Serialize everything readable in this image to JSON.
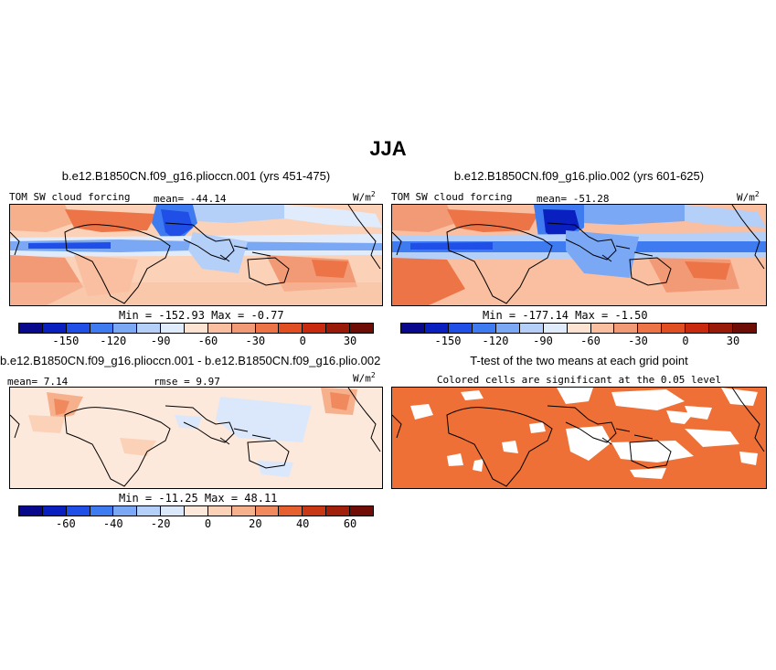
{
  "figure_title": "JJA",
  "colors": {
    "panel_scale": [
      "#08088c",
      "#0a1fc0",
      "#1f4fe6",
      "#3e7bf0",
      "#7aa8f5",
      "#b4cff8",
      "#e0ecfb",
      "#fde3d2",
      "#f9bfa0",
      "#f29a76",
      "#ec7446",
      "#e14e22",
      "#c92a0f",
      "#9a1a0a",
      "#6e0d06"
    ],
    "diff_scale": [
      "#08088c",
      "#0a1fc0",
      "#1f4fe6",
      "#3e7bf0",
      "#7aa8f5",
      "#b4cff8",
      "#dbe7fa",
      "#fde9dc",
      "#fbd2b8",
      "#f6b08c",
      "#f08a5e",
      "#e6602f",
      "#c93814",
      "#a0200b",
      "#700d06"
    ],
    "significant": "#ee7036",
    "land_coast": "#000000"
  },
  "chart_data": [
    {
      "type": "heatmap",
      "title": "b.e12.B1850CN.f09_g16.plioccn.001 (yrs 451-475)",
      "variable": "TOM SW cloud forcing",
      "mean_label": "mean= -44.14",
      "units_label": "W/m",
      "units_sup": "2",
      "minmax_label": "Min = -152.93 Max =  -0.77",
      "min": -152.93,
      "max": -0.77,
      "mean": -44.14,
      "colorbar_ticks": [
        "-150",
        "-120",
        "-90",
        "-60",
        "-30",
        "0",
        "30"
      ]
    },
    {
      "type": "heatmap",
      "title": "b.e12.B1850CN.f09_g16.plio.002 (yrs 601-625)",
      "variable": "TOM SW cloud forcing",
      "mean_label": "mean= -51.28",
      "units_label": "W/m",
      "units_sup": "2",
      "minmax_label": "Min = -177.14 Max =  -1.50",
      "min": -177.14,
      "max": -1.5,
      "mean": -51.28,
      "colorbar_ticks": [
        "-150",
        "-120",
        "-90",
        "-60",
        "-30",
        "0",
        "30"
      ]
    },
    {
      "type": "heatmap",
      "title": "b.e12.B1850CN.f09_g16.plioccn.001 - b.e12.B1850CN.f09_g16.plio.002",
      "mean_label": "mean=  7.14",
      "rmse_label": "rmse =  9.97",
      "units_label": "W/m",
      "units_sup": "2",
      "minmax_label": "Min = -11.25 Max =  48.11",
      "min": -11.25,
      "max": 48.11,
      "mean": 7.14,
      "rmse": 9.97,
      "colorbar_ticks": [
        "-60",
        "-40",
        "-20",
        "0",
        "20",
        "40",
        "60"
      ]
    },
    {
      "type": "heatmap",
      "title": "T-test of the two means at each grid point",
      "subtitle": "Colored cells are significant at the 0.05 level",
      "significance_level": 0.05
    }
  ]
}
